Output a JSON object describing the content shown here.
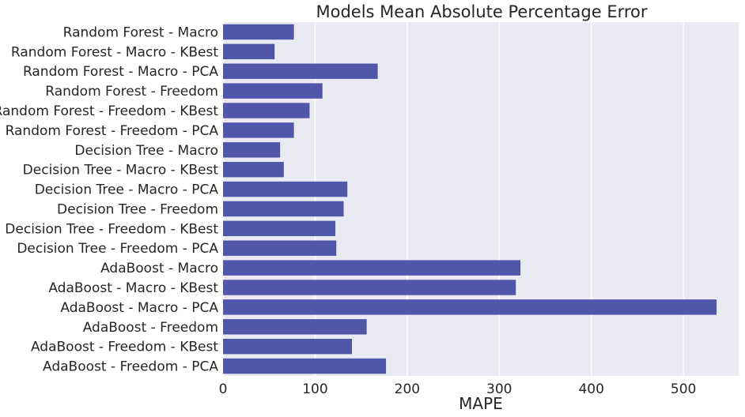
{
  "chart_data": {
    "type": "bar",
    "orientation": "horizontal",
    "title": "Models Mean Absolute Percentage Error",
    "xlabel": "MAPE",
    "ylabel": "",
    "xlim": [
      0,
      560
    ],
    "xticks": [
      0,
      100,
      200,
      300,
      400,
      500
    ],
    "grid": true,
    "bar_color": "#5056a8",
    "background_color": "#eaeaf2",
    "categories": [
      "Random Forest - Macro",
      "Random Forest - Macro - KBest",
      "Random Forest - Macro - PCA",
      "Random Forest - Freedom",
      "Random Forest - Freedom - KBest",
      "Random Forest - Freedom - PCA",
      "Decision Tree - Macro",
      "Decision Tree - Macro - KBest",
      "Decision Tree - Macro - PCA",
      "Decision Tree - Freedom",
      "Decision Tree - Freedom - KBest",
      "Decision Tree - Freedom - PCA",
      "AdaBoost - Macro",
      "AdaBoost - Macro - KBest",
      "AdaBoost - Macro - PCA",
      "AdaBoost - Freedom",
      "AdaBoost - Freedom - KBest",
      "AdaBoost - Freedom - PCA"
    ],
    "values": [
      77,
      56,
      168,
      108,
      94,
      77,
      62,
      66,
      135,
      131,
      122,
      123,
      323,
      318,
      536,
      156,
      140,
      177
    ]
  }
}
